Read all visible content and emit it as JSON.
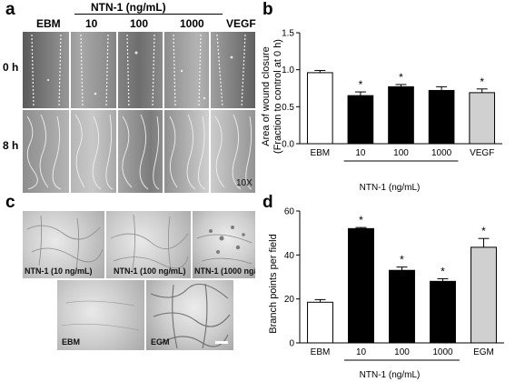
{
  "panels": {
    "a": {
      "letter": "a",
      "group_label": "NTN-1 (ng/mL)",
      "column_labels": [
        "EBM",
        "10",
        "100",
        "1000",
        "VEGF"
      ],
      "row_labels": [
        "0 h",
        "8 h"
      ],
      "magnification": "10X"
    },
    "b": {
      "letter": "b",
      "group_label": "NTN-1  (ng/mL)"
    },
    "c": {
      "letter": "c",
      "image_labels": [
        "NTN-1 (10 ng/mL)",
        "NTN-1 (100 ng/mL)",
        "NTN-1  (1000 ng/mL)",
        "EBM",
        "EGM"
      ]
    },
    "d": {
      "letter": "d",
      "group_label": "NTN-1  (ng/mL)"
    }
  },
  "chart_data": [
    {
      "type": "bar",
      "panel": "b",
      "categories": [
        "EBM",
        "10",
        "100",
        "1000",
        "VEGF"
      ],
      "values": [
        0.96,
        0.65,
        0.77,
        0.72,
        0.69
      ],
      "errors": [
        0.03,
        0.05,
        0.03,
        0.05,
        0.05
      ],
      "fills": [
        "#ffffff",
        "#000000",
        "#000000",
        "#000000",
        "#d0d0d0"
      ],
      "significance": [
        "",
        "*",
        "*",
        "",
        "*"
      ],
      "ylabel_line1": "Area of wound closure",
      "ylabel_line2": "(Fraction to control at 0 h)",
      "ylim": [
        0,
        1.5
      ],
      "yticks": [
        "0.0",
        "0.5",
        "1.0",
        "1.5"
      ]
    },
    {
      "type": "bar",
      "panel": "d",
      "categories": [
        "EBM",
        "10",
        "100",
        "1000",
        "EGM"
      ],
      "values": [
        18.5,
        52,
        33,
        28,
        43.5
      ],
      "errors": [
        1.2,
        0.5,
        1.5,
        1.2,
        4
      ],
      "fills": [
        "#ffffff",
        "#000000",
        "#000000",
        "#000000",
        "#d0d0d0"
      ],
      "significance": [
        "",
        "*",
        "*",
        "*",
        "*"
      ],
      "ylabel": "Branch points per field",
      "ylim": [
        0,
        60
      ],
      "yticks": [
        "0",
        "20",
        "40",
        "60"
      ]
    }
  ]
}
